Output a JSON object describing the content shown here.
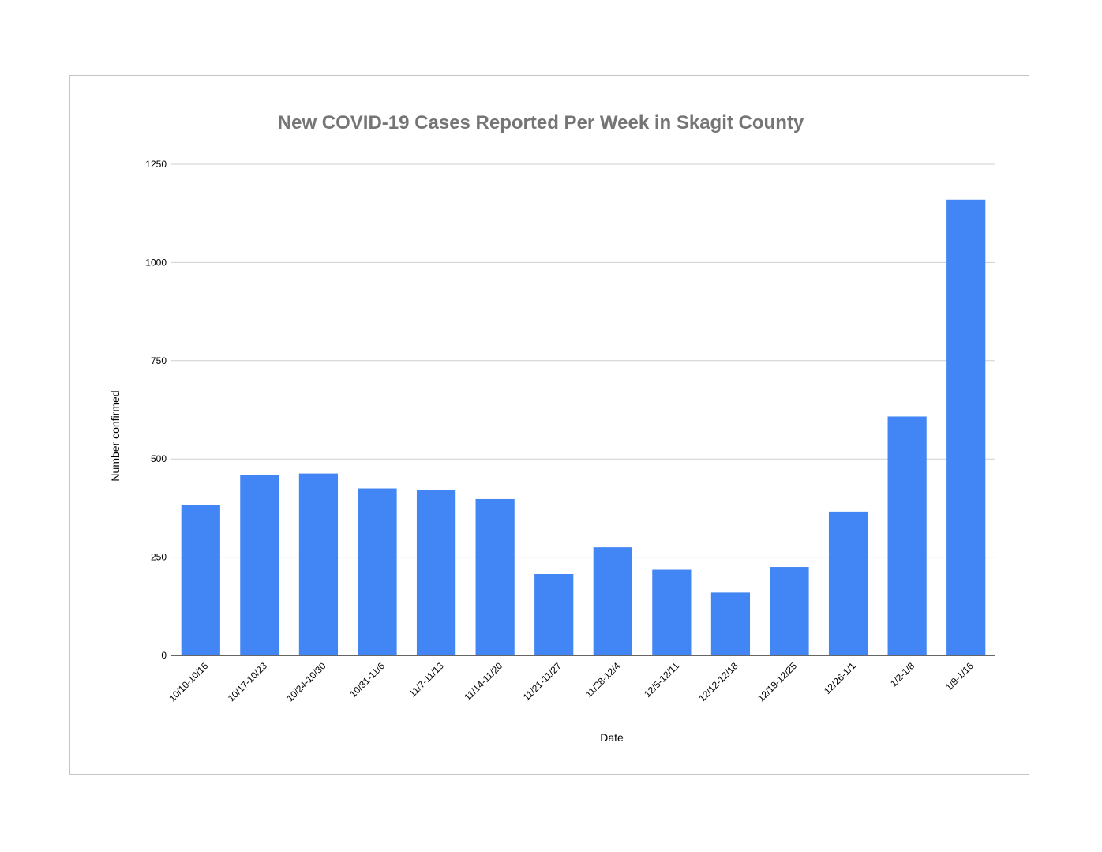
{
  "chart_data": {
    "type": "bar",
    "title": "New COVID-19 Cases Reported Per Week in Skagit County",
    "xlabel": "Date",
    "ylabel": "Number confirmed",
    "categories": [
      "10/10-10/16",
      "10/17-10/23",
      "10/24-10/30",
      "10/31-11/6",
      "11/7-11/13",
      "11/14-11/20",
      "11/21-11/27",
      "11/28-12/4",
      "12/5-12/11",
      "12/12-12/18",
      "12/19-12/25",
      "12/26-1/1",
      "1/2-1/8",
      "1/9-1/16"
    ],
    "values": [
      382,
      459,
      463,
      425,
      421,
      398,
      207,
      275,
      218,
      160,
      225,
      366,
      608,
      1160
    ],
    "ylim": [
      0,
      1250
    ],
    "yticks": [
      "0",
      "250",
      "500",
      "750",
      "1000",
      "1250"
    ],
    "grid": true,
    "bar_color": "#4285f4"
  }
}
